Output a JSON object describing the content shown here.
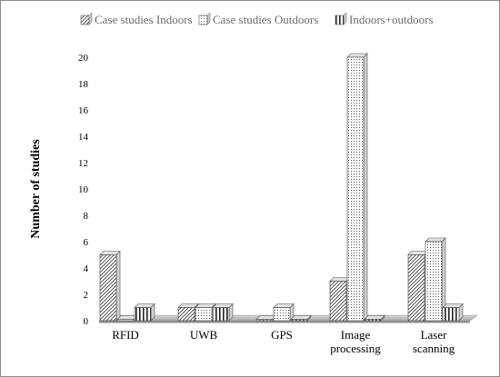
{
  "chart_data": {
    "type": "bar",
    "style": "3d-clustered-column",
    "categories": [
      [
        "RFID"
      ],
      [
        "UWB"
      ],
      [
        "GPS"
      ],
      [
        "Image",
        "processing"
      ],
      [
        "Laser",
        "scanning"
      ]
    ],
    "series": [
      {
        "name": "Case studies Indoors",
        "values": [
          5,
          1,
          0,
          3,
          5
        ],
        "pattern": "diagonal-hatch"
      },
      {
        "name": "Case studies Outdoors",
        "values": [
          0,
          1,
          1,
          20,
          6
        ],
        "pattern": "dotted"
      },
      {
        "name": "Indoors+outdoors",
        "values": [
          1,
          1,
          0,
          0,
          1
        ],
        "pattern": "vertical-stripes"
      }
    ],
    "ylabel": "Number of studies",
    "xlabel": "",
    "ylim": [
      0,
      20
    ],
    "yticks": [
      0,
      2,
      4,
      6,
      8,
      10,
      12,
      14,
      16,
      18,
      20
    ],
    "grid": false,
    "legend_position": "top",
    "colors": {
      "bar_fill": "#ffffff",
      "bar_stroke": "#555555",
      "bar_side": "#cfcfcf",
      "floor": "#bfbfbf",
      "legend_text": "#6b6b6b"
    }
  }
}
